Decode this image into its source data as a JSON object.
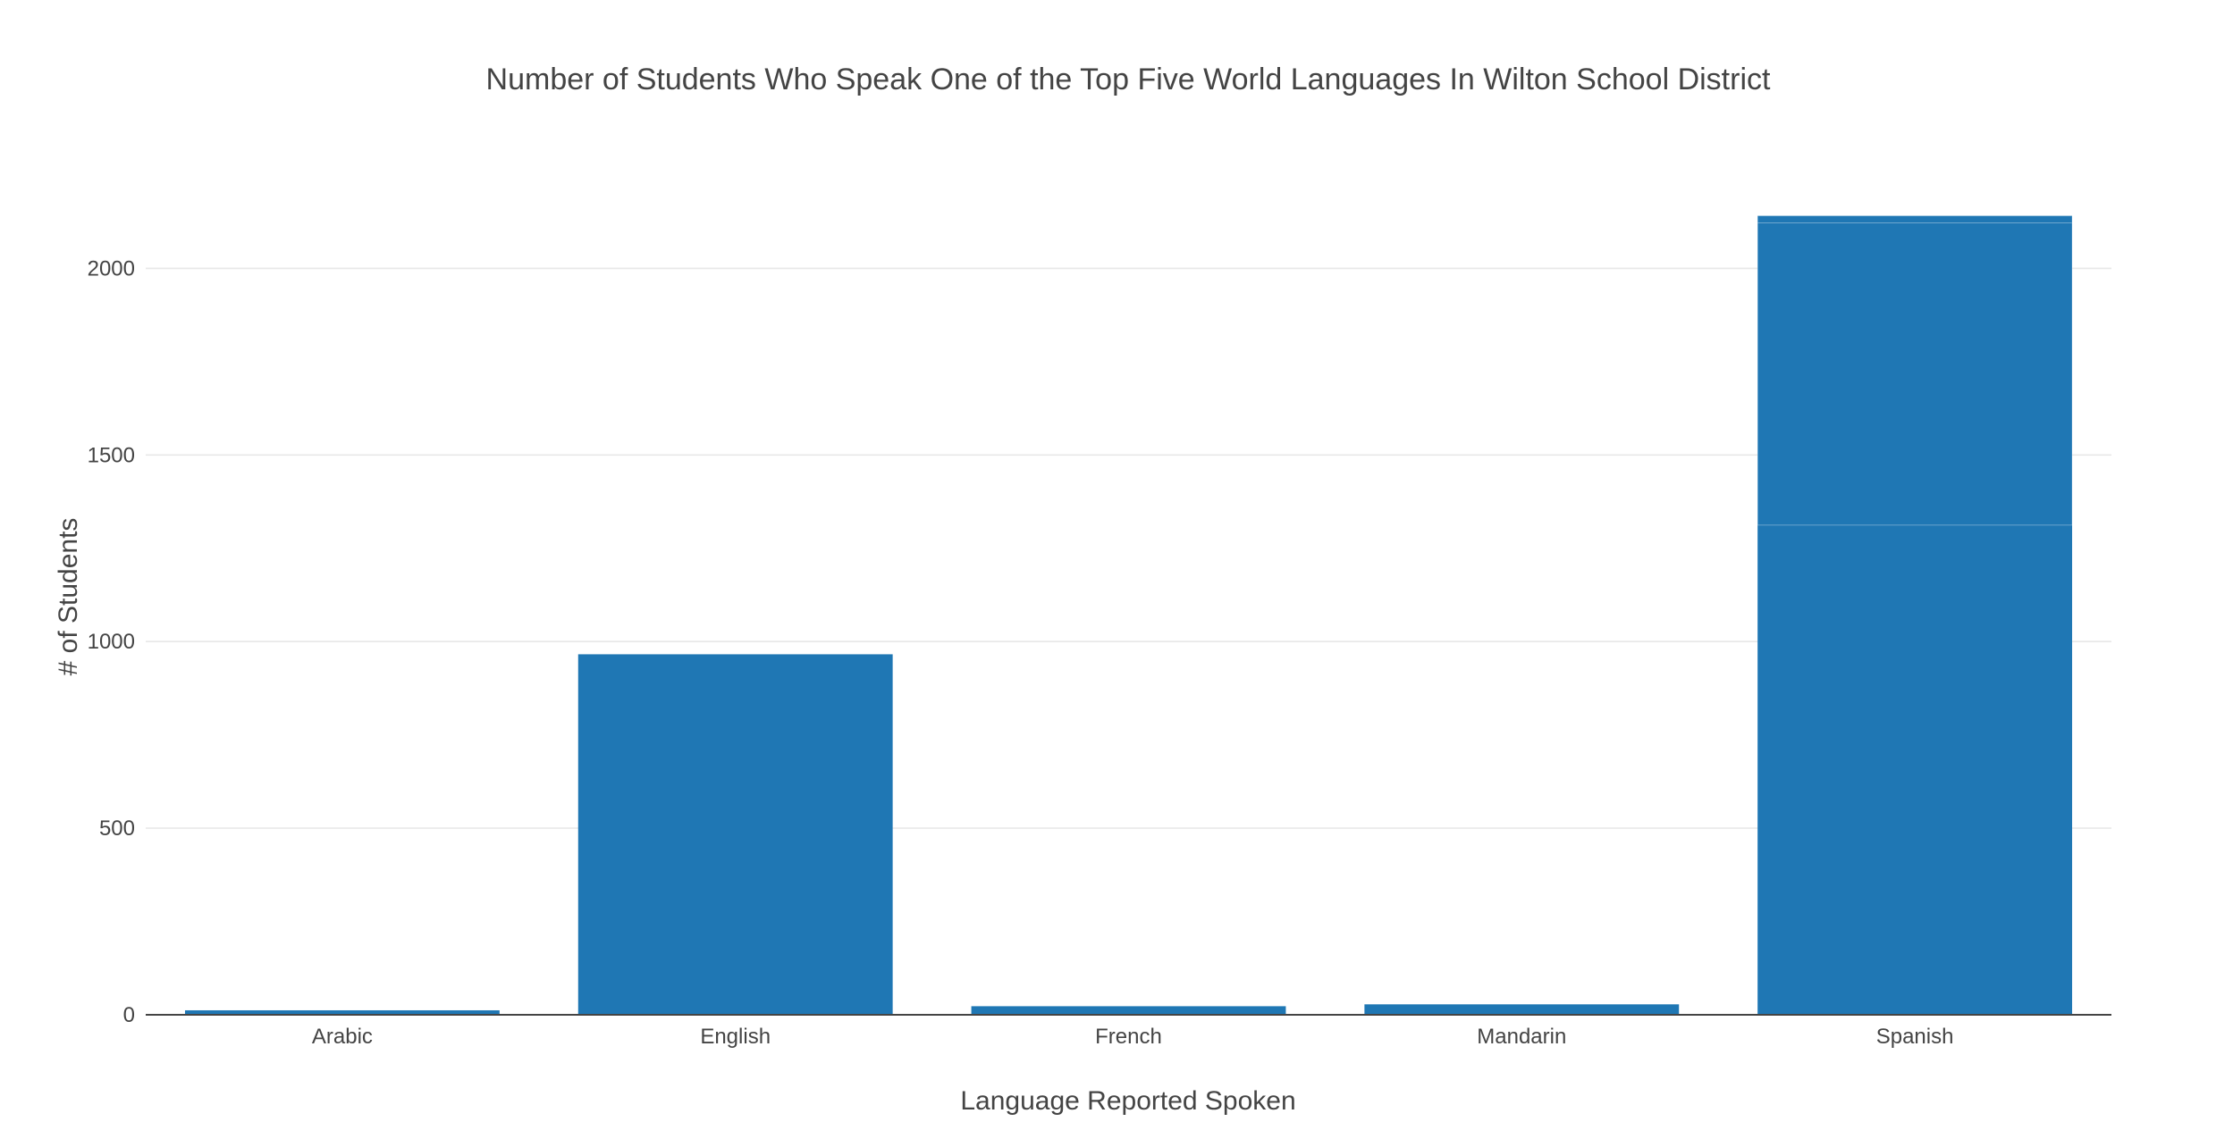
{
  "chart_data": {
    "type": "bar",
    "title": "Number of Students Who Speak One of the Top Five World Languages In Wilton School District",
    "xlabel": "Language Reported Spoken",
    "ylabel": "# of Students",
    "categories": [
      "Arabic",
      "English",
      "French",
      "Mandarin",
      "Spanish"
    ],
    "values": [
      12,
      966,
      23,
      28,
      2141
    ],
    "stacked_segments": [
      {
        "category": "Spanish",
        "segments": [
          1312,
          810,
          19
        ]
      }
    ],
    "ylim": [
      0,
      2250
    ],
    "yticks": [
      0,
      500,
      1000,
      1500,
      2000
    ],
    "grid": true,
    "legend": "none",
    "bar_color": "#1f77b4"
  }
}
